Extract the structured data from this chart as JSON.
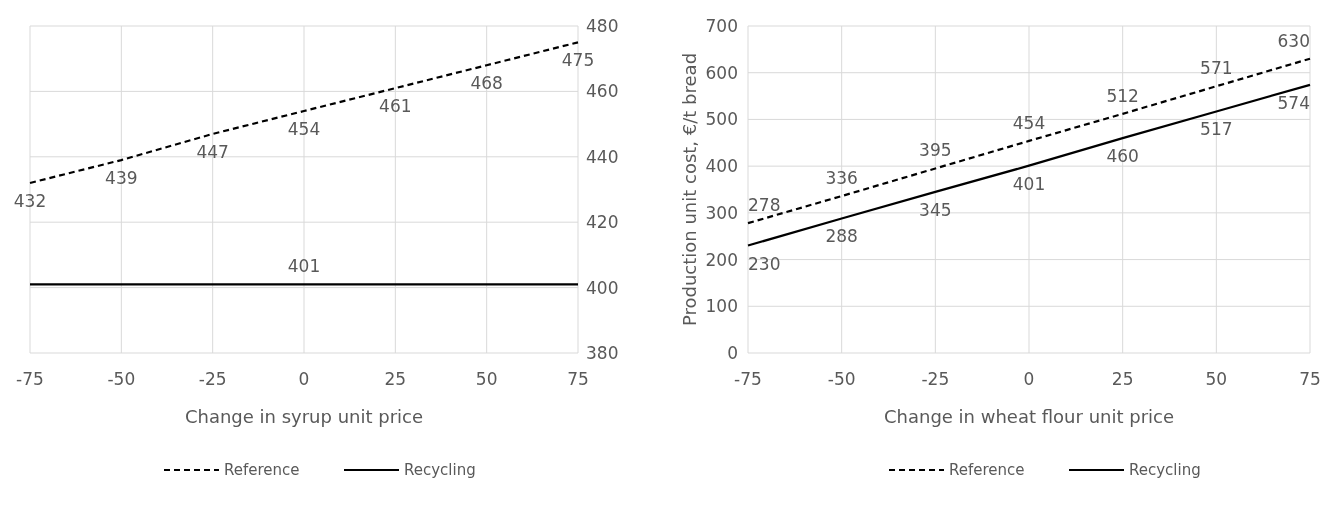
{
  "chart_data": [
    {
      "type": "line",
      "xlabel": "Change in syrup unit price",
      "x": [
        -75,
        -50,
        -25,
        0,
        25,
        50,
        75
      ],
      "xlim": [
        -75,
        75
      ],
      "xticks": [
        -75,
        -50,
        -25,
        0,
        25,
        50,
        75
      ],
      "y2lim": [
        380,
        480
      ],
      "y2ticks": [
        380,
        400,
        420,
        440,
        460,
        480
      ],
      "grid": true,
      "legend": "bottom",
      "marker": "none",
      "series": [
        {
          "name": "Reference",
          "color": "#000000",
          "line_style": "dashed",
          "axis": "y2",
          "values": [
            432,
            439,
            447,
            454,
            461,
            468,
            475
          ],
          "value_labels": [
            "432",
            "439",
            "447",
            "454",
            "461",
            "468",
            "475"
          ]
        },
        {
          "name": "Recycling",
          "color": "#000000",
          "line_style": "solid",
          "axis": "y2",
          "values": [
            401,
            401,
            401,
            401,
            401,
            401,
            401
          ],
          "value_labels": [
            null,
            null,
            null,
            "401",
            null,
            null,
            null
          ]
        }
      ]
    },
    {
      "type": "line",
      "xlabel": "Change in wheat flour unit price",
      "ylabel": "Production unit cost, €/t bread",
      "x": [
        -75,
        -50,
        -25,
        0,
        25,
        50,
        75
      ],
      "xlim": [
        -75,
        75
      ],
      "xticks": [
        -75,
        -50,
        -25,
        0,
        25,
        50,
        75
      ],
      "ylim": [
        0,
        700
      ],
      "yticks": [
        0,
        100,
        200,
        300,
        400,
        500,
        600,
        700
      ],
      "grid": true,
      "legend": "bottom",
      "marker": "none",
      "series": [
        {
          "name": "Reference",
          "color": "#000000",
          "line_style": "dashed",
          "values": [
            278,
            336,
            395,
            454,
            512,
            571,
            630
          ],
          "value_labels": [
            "278",
            "336",
            "395",
            "454",
            "512",
            "571",
            "630"
          ]
        },
        {
          "name": "Recycling",
          "color": "#000000",
          "line_style": "solid",
          "values": [
            230,
            288,
            345,
            401,
            460,
            517,
            574
          ],
          "value_labels": [
            "230",
            "288",
            "345",
            "401",
            "460",
            "517",
            "574"
          ]
        }
      ]
    }
  ]
}
